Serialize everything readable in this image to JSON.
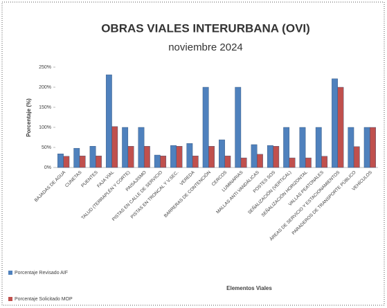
{
  "chart_data": {
    "type": "bar",
    "title": "OBRAS VIALES INTERURBANA (OVI)",
    "subtitle": "noviembre 2024",
    "y_label": "Porcentaje (%)",
    "x_label": "Elementos Viales",
    "categories": [
      "BAJADAS DE AGUA",
      "CUNETAS",
      "PUENTES",
      "FAJA VIAL",
      "TALUD (TERRAPLÉN Y CORTE)",
      "PAISAJISMO",
      "PISTAS EN CALLE DE SERVICIO",
      "PISTAS EN TRONCAL Y V.SEC.",
      "VEREDA",
      "BARRERAS DE CONTENCIÓN",
      "CERCOS",
      "LUMINARIAS",
      "MALLAS ANTI VANDÁLICAS",
      "POSTES SOS",
      "SEÑALIZACIÓN (VERTICAL)",
      "SEÑALIZACIÓN HORIZONTAL",
      "VALLAS PEATONALES",
      "ÁREAS DE SERVICIO Y ESTACIONAMIENTOS",
      "PARADEROS DE TRANSPORTE PÚBLICO",
      "VEHÍCULOS"
    ],
    "series": [
      {
        "name": "Porcentaje Revisado AIF",
        "color": "#4f81bd",
        "values": [
          34,
          48,
          53,
          231,
          100,
          100,
          31,
          55,
          60,
          200,
          69,
          200,
          57,
          55,
          100,
          100,
          100,
          221,
          100,
          100
        ]
      },
      {
        "name": "Porcentaje Solicitado MOP",
        "color": "#c0504d",
        "values": [
          28,
          29,
          29,
          102,
          53,
          53,
          29,
          53,
          29,
          53,
          29,
          24,
          33,
          53,
          24,
          24,
          28,
          200,
          52,
          100
        ]
      }
    ],
    "ylim": [
      0,
      250
    ],
    "yticks": [
      {
        "value": 0,
        "label": "0%"
      },
      {
        "value": 50,
        "label": "50%"
      },
      {
        "value": 100,
        "label": "100%"
      },
      {
        "value": 150,
        "label": "150%"
      },
      {
        "value": 200,
        "label": "200%"
      },
      {
        "value": 250,
        "label": "250%"
      }
    ],
    "grid": false,
    "legend": "bottom-left"
  }
}
